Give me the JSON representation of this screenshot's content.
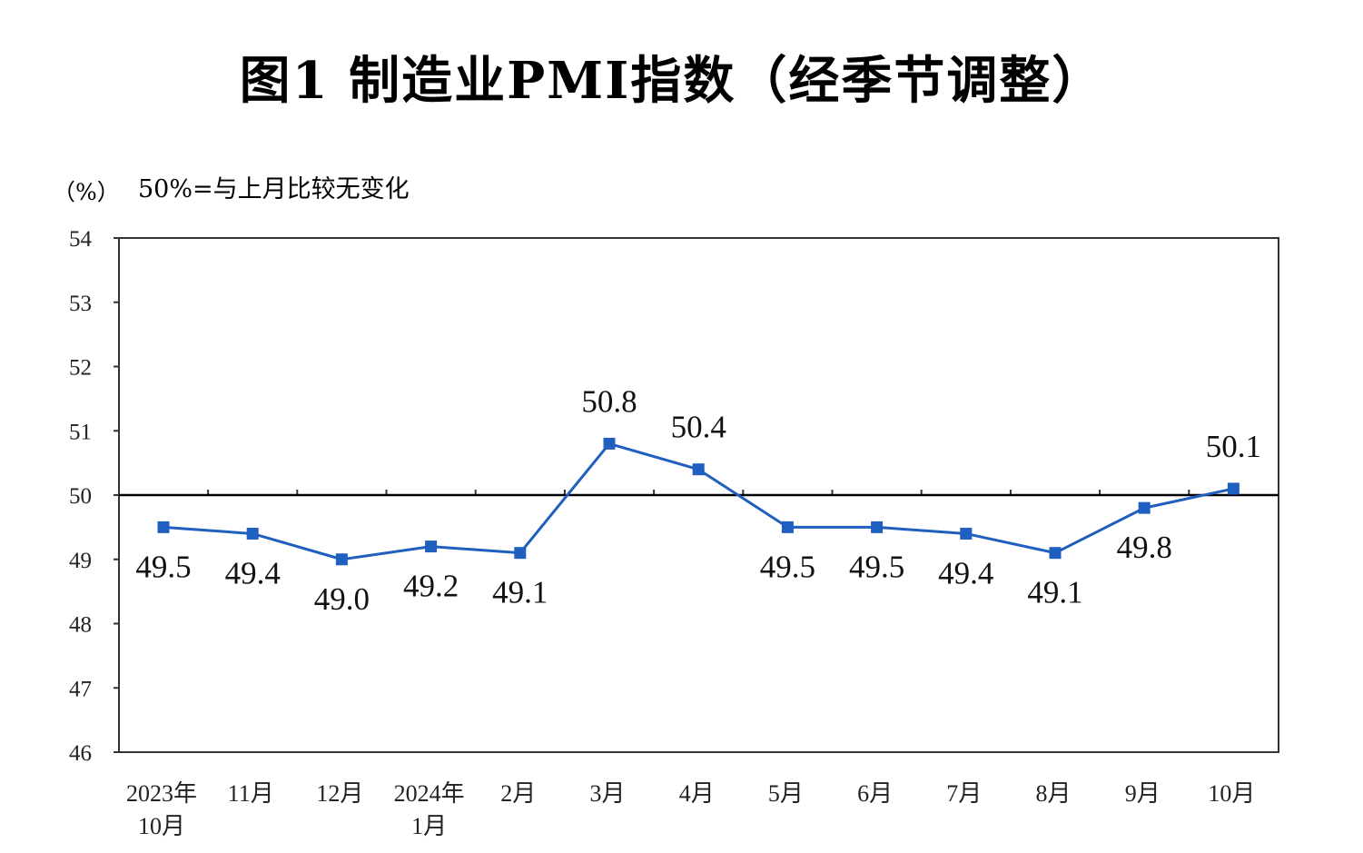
{
  "title": "图1  制造业PMI指数（经季节调整）",
  "unit_label": "（%）",
  "note": "50%=与上月比较无变化",
  "colors": {
    "series": "#1f5fbf",
    "axis": "#333333",
    "reference_line": "#000000"
  },
  "chart_data": {
    "type": "line",
    "title": "图1  制造业PMI指数（经季节调整）",
    "ylabel": "（%）",
    "xlabel": "",
    "ylim": [
      46,
      54
    ],
    "yticks": [
      "46",
      "47",
      "48",
      "49",
      "50",
      "51",
      "52",
      "53",
      "54"
    ],
    "reference_line": 50,
    "grid": false,
    "categories": [
      [
        "2023年",
        "10月"
      ],
      [
        "11月"
      ],
      [
        "12月"
      ],
      [
        "2024年",
        "1月"
      ],
      [
        "2月"
      ],
      [
        "3月"
      ],
      [
        "4月"
      ],
      [
        "5月"
      ],
      [
        "6月"
      ],
      [
        "7月"
      ],
      [
        "8月"
      ],
      [
        "9月"
      ],
      [
        "10月"
      ]
    ],
    "series": [
      {
        "values": [
          49.5,
          49.4,
          49.0,
          49.2,
          49.1,
          50.8,
          50.4,
          49.5,
          49.5,
          49.4,
          49.1,
          49.8,
          50.1
        ],
        "labels": [
          "49.5",
          "49.4",
          "49.0",
          "49.2",
          "49.1",
          "50.8",
          "50.4",
          "49.5",
          "49.5",
          "49.4",
          "49.1",
          "49.8",
          "50.1"
        ]
      }
    ]
  }
}
